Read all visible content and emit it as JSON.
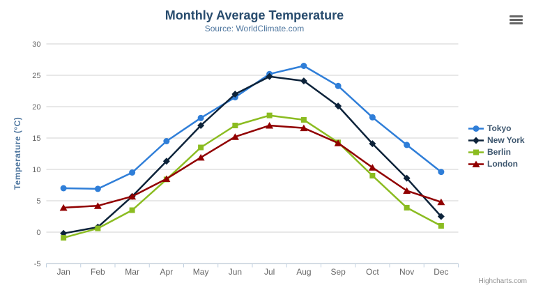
{
  "chart": {
    "title": "Monthly Average Temperature",
    "subtitle": "Source: WorldClimate.com",
    "credits": "Highcharts.com",
    "colors": {
      "title": "#274b6d",
      "subtitle": "#4d759e",
      "axis_title": "#4d759e",
      "tick_label": "#666666",
      "grid_line": "#d0d0d0",
      "axis_line": "#c0d0e0",
      "legend_text": "#3E576F",
      "background": "#ffffff"
    },
    "export_menu_icon": "hamburger-icon"
  },
  "chart_data": {
    "type": "line",
    "title": "Monthly Average Temperature",
    "subtitle": "Source: WorldClimate.com",
    "xlabel": "",
    "ylabel": "Temperature (°C)",
    "ylim": [
      -5,
      30
    ],
    "ytick_step": 5,
    "yticks": [
      -5,
      0,
      5,
      10,
      15,
      20,
      25,
      30
    ],
    "grid": true,
    "legend_position": "right",
    "categories": [
      "Jan",
      "Feb",
      "Mar",
      "Apr",
      "May",
      "Jun",
      "Jul",
      "Aug",
      "Sep",
      "Oct",
      "Nov",
      "Dec"
    ],
    "series": [
      {
        "name": "Tokyo",
        "color": "#2f7ed8",
        "marker": "circle",
        "values": [
          7.0,
          6.9,
          9.5,
          14.5,
          18.2,
          21.5,
          25.2,
          26.5,
          23.3,
          18.3,
          13.9,
          9.6
        ]
      },
      {
        "name": "New York",
        "color": "#0d233a",
        "marker": "diamond",
        "values": [
          -0.2,
          0.8,
          5.7,
          11.3,
          17.0,
          22.0,
          24.8,
          24.1,
          20.1,
          14.1,
          8.6,
          2.5
        ]
      },
      {
        "name": "Berlin",
        "color": "#8bbc21",
        "marker": "square",
        "values": [
          -0.9,
          0.6,
          3.5,
          8.4,
          13.5,
          17.0,
          18.6,
          17.9,
          14.3,
          9.0,
          3.9,
          1.0
        ]
      },
      {
        "name": "London",
        "color": "#910000",
        "marker": "triangle",
        "values": [
          3.9,
          4.2,
          5.7,
          8.5,
          11.9,
          15.2,
          17.0,
          16.6,
          14.2,
          10.3,
          6.6,
          4.8
        ]
      }
    ]
  }
}
